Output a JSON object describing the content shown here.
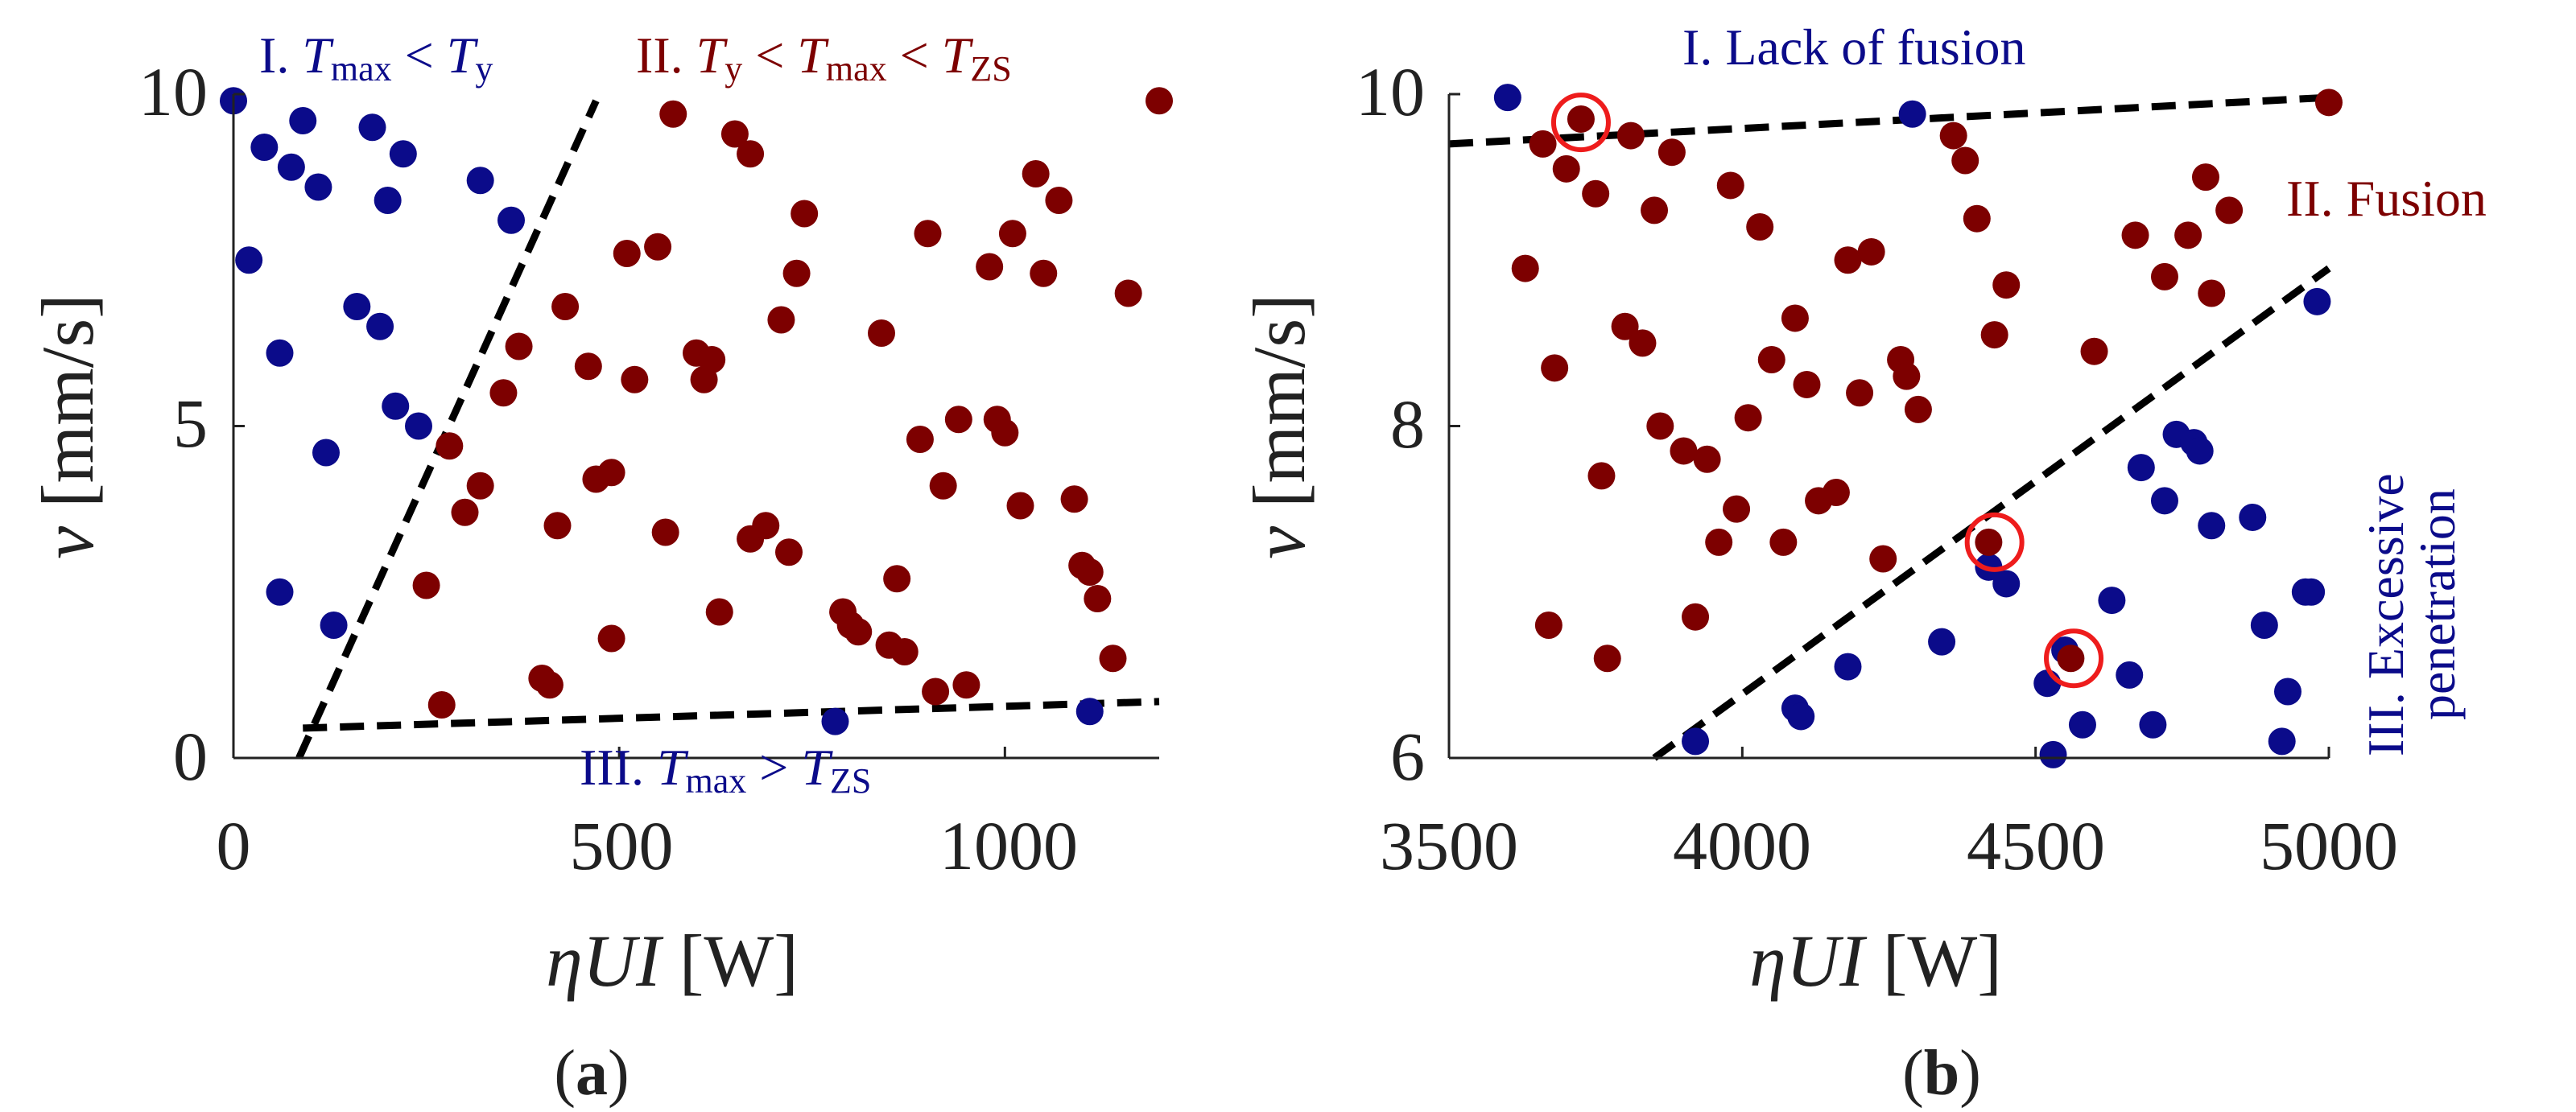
{
  "colors": {
    "blue": "#0b0b8a",
    "red": "#7d0000",
    "line": "#000000",
    "circle": "#ee1c1c",
    "text": "#222222"
  },
  "chart_data": [
    {
      "type": "scatter",
      "panel_label": {
        "open": "(",
        "letter": "a",
        "close": ")"
      },
      "xlabel": {
        "eta": "η",
        "ui": "UI",
        "unit": " [W]"
      },
      "ylabel": {
        "v": "v",
        "unit": " [mm/s]"
      },
      "xlim": [
        0,
        1200
      ],
      "ylim": [
        0,
        10
      ],
      "xticks": [
        0,
        500,
        1000
      ],
      "yticks": [
        0,
        5,
        10
      ],
      "xtick_labels": [
        "0",
        "500",
        "1000"
      ],
      "ytick_labels": [
        "0",
        "5",
        "10"
      ],
      "region_labels": {
        "I": {
          "roman": "I. ",
          "T": "T",
          "sub1": "max",
          "op": " < ",
          "T2": "T",
          "sub2": "y"
        },
        "II": {
          "roman": "II. ",
          "T": "T",
          "sub1": "y",
          "op1": " < ",
          "T2": "T",
          "sub2": "max",
          "op2": " < ",
          "T3": "T",
          "sub3": "ZS"
        },
        "III": {
          "roman": "III. ",
          "T": "T",
          "sub1": "max",
          "op": " > ",
          "T2": "T",
          "sub2": "ZS"
        }
      },
      "boundaries": [
        {
          "x": [
            85,
            470
          ],
          "y": [
            0,
            9.9
          ]
        },
        {
          "x": [
            90,
            1200
          ],
          "y": [
            0.45,
            0.85
          ]
        }
      ],
      "series": [
        {
          "name": "Tmax < Ty",
          "color": "blue",
          "points": [
            [
              0,
              9.9
            ],
            [
              20,
              7.5
            ],
            [
              40,
              9.2
            ],
            [
              60,
              6.1
            ],
            [
              60,
              2.5
            ],
            [
              75,
              8.9
            ],
            [
              90,
              9.6
            ],
            [
              110,
              8.6
            ],
            [
              120,
              4.6
            ],
            [
              130,
              2
            ],
            [
              160,
              6.8
            ],
            [
              180,
              9.5
            ],
            [
              190,
              6.5
            ],
            [
              200,
              8.4
            ],
            [
              210,
              5.3
            ],
            [
              220,
              9.1
            ],
            [
              240,
              5
            ],
            [
              320,
              8.7
            ],
            [
              360,
              8.1
            ],
            [
              780,
              0.55
            ],
            [
              1110,
              0.7
            ]
          ]
        },
        {
          "name": "Ty < Tmax < TZS",
          "color": "red",
          "points": [
            [
              250,
              2.6
            ],
            [
              270,
              0.8
            ],
            [
              280,
              4.7
            ],
            [
              300,
              3.7
            ],
            [
              320,
              4.1
            ],
            [
              350,
              5.5
            ],
            [
              370,
              6.2
            ],
            [
              400,
              1.2
            ],
            [
              410,
              1.1
            ],
            [
              420,
              3.5
            ],
            [
              430,
              6.8
            ],
            [
              460,
              5.9
            ],
            [
              470,
              4.2
            ],
            [
              490,
              1.8
            ],
            [
              490,
              4.3
            ],
            [
              510,
              7.6
            ],
            [
              520,
              5.7
            ],
            [
              550,
              7.7
            ],
            [
              560,
              3.4
            ],
            [
              570,
              9.7
            ],
            [
              600,
              6.1
            ],
            [
              610,
              5.7
            ],
            [
              620,
              6
            ],
            [
              630,
              2.2
            ],
            [
              650,
              9.4
            ],
            [
              670,
              9.1
            ],
            [
              670,
              3.3
            ],
            [
              690,
              3.5
            ],
            [
              710,
              6.6
            ],
            [
              720,
              3.1
            ],
            [
              730,
              7.3
            ],
            [
              740,
              8.2
            ],
            [
              790,
              2.2
            ],
            [
              800,
              2
            ],
            [
              810,
              1.9
            ],
            [
              840,
              6.4
            ],
            [
              850,
              1.7
            ],
            [
              860,
              2.7
            ],
            [
              870,
              1.6
            ],
            [
              890,
              4.8
            ],
            [
              900,
              7.9
            ],
            [
              910,
              1
            ],
            [
              920,
              4.1
            ],
            [
              940,
              5.1
            ],
            [
              950,
              1.1
            ],
            [
              980,
              7.4
            ],
            [
              990,
              5.1
            ],
            [
              1000,
              4.9
            ],
            [
              1020,
              3.8
            ],
            [
              1040,
              8.8
            ],
            [
              1050,
              7.3
            ],
            [
              1070,
              8.4
            ],
            [
              1090,
              3.9
            ],
            [
              1100,
              2.9
            ],
            [
              1110,
              2.8
            ],
            [
              1120,
              2.4
            ],
            [
              1140,
              1.5
            ],
            [
              1160,
              7
            ],
            [
              1200,
              9.9
            ],
            [
              1010,
              7.9
            ]
          ]
        }
      ]
    },
    {
      "type": "scatter",
      "panel_label": {
        "open": "(",
        "letter": "b",
        "close": ")"
      },
      "xlabel": {
        "eta": "η",
        "ui": "UI",
        "unit": " [W]"
      },
      "ylabel": {
        "v": "v",
        "unit": " [mm/s]"
      },
      "xlim": [
        3500,
        5000
      ],
      "ylim": [
        6,
        10
      ],
      "xticks": [
        3500,
        4000,
        4500,
        5000
      ],
      "yticks": [
        6,
        8,
        10
      ],
      "xtick_labels": [
        "3500",
        "4000",
        "4500",
        "5000"
      ],
      "ytick_labels": [
        "6",
        "8",
        "10"
      ],
      "region_labels": {
        "I": "I. Lack of fusion",
        "II": "II. Fusion",
        "III_line1": "III. Excessive",
        "III_line2": "penetration"
      },
      "boundaries": [
        {
          "x": [
            3500,
            5000
          ],
          "y": [
            9.7,
            9.98
          ]
        },
        {
          "x": [
            3850,
            5000
          ],
          "y": [
            6,
            8.95
          ]
        }
      ],
      "highlighted": [
        [
          3725,
          9.83
        ],
        [
          4430,
          7.3
        ],
        [
          4565,
          6.6
        ]
      ],
      "series": [
        {
          "name": "Lack of fusion / Excessive penetration",
          "color": "blue",
          "points": [
            [
              3600,
              9.98
            ],
            [
              4290,
              9.88
            ],
            [
              3920,
              6.1
            ],
            [
              4090,
              6.3
            ],
            [
              4100,
              6.25
            ],
            [
              4180,
              6.55
            ],
            [
              4340,
              6.7
            ],
            [
              4420,
              7.15
            ],
            [
              4450,
              7.05
            ],
            [
              4520,
              6.45
            ],
            [
              4530,
              6.02
            ],
            [
              4550,
              6.65
            ],
            [
              4580,
              6.2
            ],
            [
              4630,
              6.95
            ],
            [
              4660,
              6.5
            ],
            [
              4680,
              7.75
            ],
            [
              4700,
              6.2
            ],
            [
              4720,
              7.55
            ],
            [
              4740,
              7.95
            ],
            [
              4770,
              7.9
            ],
            [
              4780,
              7.85
            ],
            [
              4800,
              7.4
            ],
            [
              4870,
              7.45
            ],
            [
              4890,
              6.8
            ],
            [
              4920,
              6.1
            ],
            [
              4930,
              6.4
            ],
            [
              4960,
              7
            ],
            [
              4970,
              7
            ],
            [
              4980,
              8.75
            ]
          ]
        },
        {
          "name": "Fusion",
          "color": "red",
          "points": [
            [
              3630,
              8.95
            ],
            [
              3660,
              9.7
            ],
            [
              3670,
              6.8
            ],
            [
              3680,
              8.35
            ],
            [
              3700,
              9.55
            ],
            [
              3725,
              9.85
            ],
            [
              3750,
              9.4
            ],
            [
              3760,
              7.7
            ],
            [
              3770,
              6.6
            ],
            [
              3800,
              8.6
            ],
            [
              3810,
              9.75
            ],
            [
              3830,
              8.5
            ],
            [
              3850,
              9.3
            ],
            [
              3860,
              8
            ],
            [
              3880,
              9.65
            ],
            [
              3900,
              7.85
            ],
            [
              3920,
              6.85
            ],
            [
              3940,
              7.8
            ],
            [
              3960,
              7.3
            ],
            [
              3980,
              9.45
            ],
            [
              3990,
              7.5
            ],
            [
              4010,
              8.05
            ],
            [
              4030,
              9.2
            ],
            [
              4050,
              8.4
            ],
            [
              4070,
              7.3
            ],
            [
              4090,
              8.65
            ],
            [
              4110,
              8.25
            ],
            [
              4130,
              7.55
            ],
            [
              4160,
              7.6
            ],
            [
              4180,
              9
            ],
            [
              4200,
              8.2
            ],
            [
              4220,
              9.05
            ],
            [
              4240,
              7.2
            ],
            [
              4270,
              8.4
            ],
            [
              4280,
              8.3
            ],
            [
              4300,
              8.1
            ],
            [
              4360,
              9.75
            ],
            [
              4380,
              9.6
            ],
            [
              4400,
              9.25
            ],
            [
              4420,
              7.3
            ],
            [
              4430,
              8.55
            ],
            [
              4450,
              8.85
            ],
            [
              4560,
              6.6
            ],
            [
              4600,
              8.45
            ],
            [
              4670,
              9.15
            ],
            [
              4720,
              8.9
            ],
            [
              4760,
              9.15
            ],
            [
              4790,
              9.5
            ],
            [
              4800,
              8.8
            ],
            [
              4830,
              9.3
            ],
            [
              5000,
              9.95
            ]
          ]
        }
      ]
    }
  ]
}
